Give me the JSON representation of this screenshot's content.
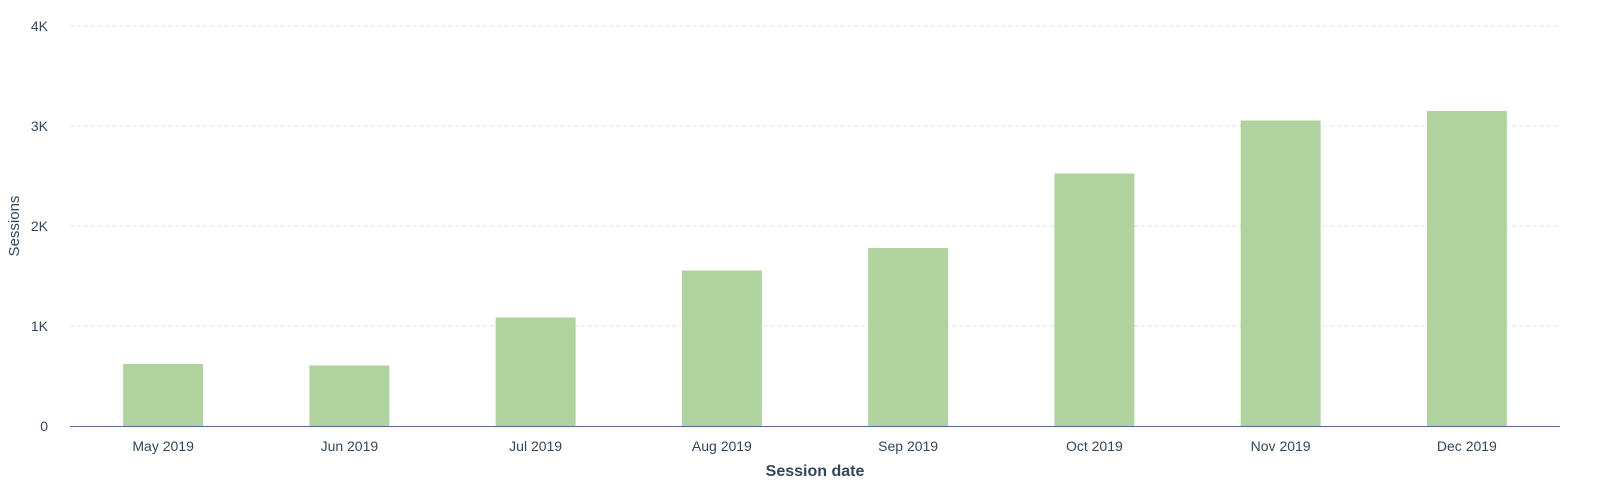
{
  "chart_data": {
    "type": "bar",
    "categories": [
      "May 2019",
      "Jun 2019",
      "Jul 2019",
      "Aug 2019",
      "Sep 2019",
      "Oct 2019",
      "Nov 2019",
      "Dec 2019"
    ],
    "values": [
      620,
      605,
      1085,
      1555,
      1780,
      2525,
      3055,
      3150
    ],
    "xlabel": "Session date",
    "ylabel": "Sessions",
    "ylim": [
      0,
      4000
    ],
    "yticks": [
      0,
      1000,
      2000,
      3000,
      4000
    ],
    "ytick_labels": [
      "0",
      "1K",
      "2K",
      "3K",
      "4K"
    ],
    "grid": true,
    "bar_color": "#b0d29e",
    "axis_color": "#516f90",
    "text_color": "#33475b"
  }
}
